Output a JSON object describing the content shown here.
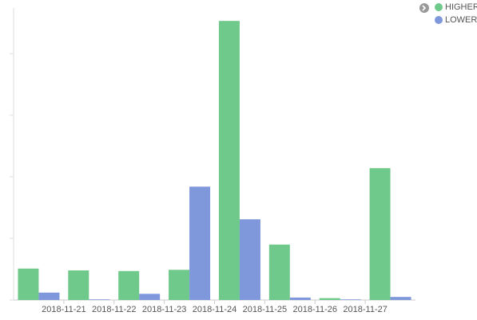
{
  "chart_data": {
    "type": "bar",
    "categories": [
      null,
      "2018-11-21",
      "2018-11-22",
      "2018-11-23",
      "2018-11-24",
      "2018-11-25",
      "2018-11-26",
      "2018-11-27"
    ],
    "series": [
      {
        "name": "HIGHER",
        "color": "#6fc98a",
        "values": [
          0.51,
          0.48,
          0.47,
          0.49,
          4.53,
          0.9,
          0.03,
          2.14
        ]
      },
      {
        "name": "LOWER",
        "color": "#7f98dc",
        "values": [
          0.12,
          0.01,
          0.1,
          1.84,
          1.31,
          0.04,
          0.01,
          0.05
        ]
      }
    ],
    "ylim": [
      0,
      4.74
    ],
    "yticks": [
      0,
      1,
      2,
      3,
      4
    ],
    "legend": "top-right"
  }
}
